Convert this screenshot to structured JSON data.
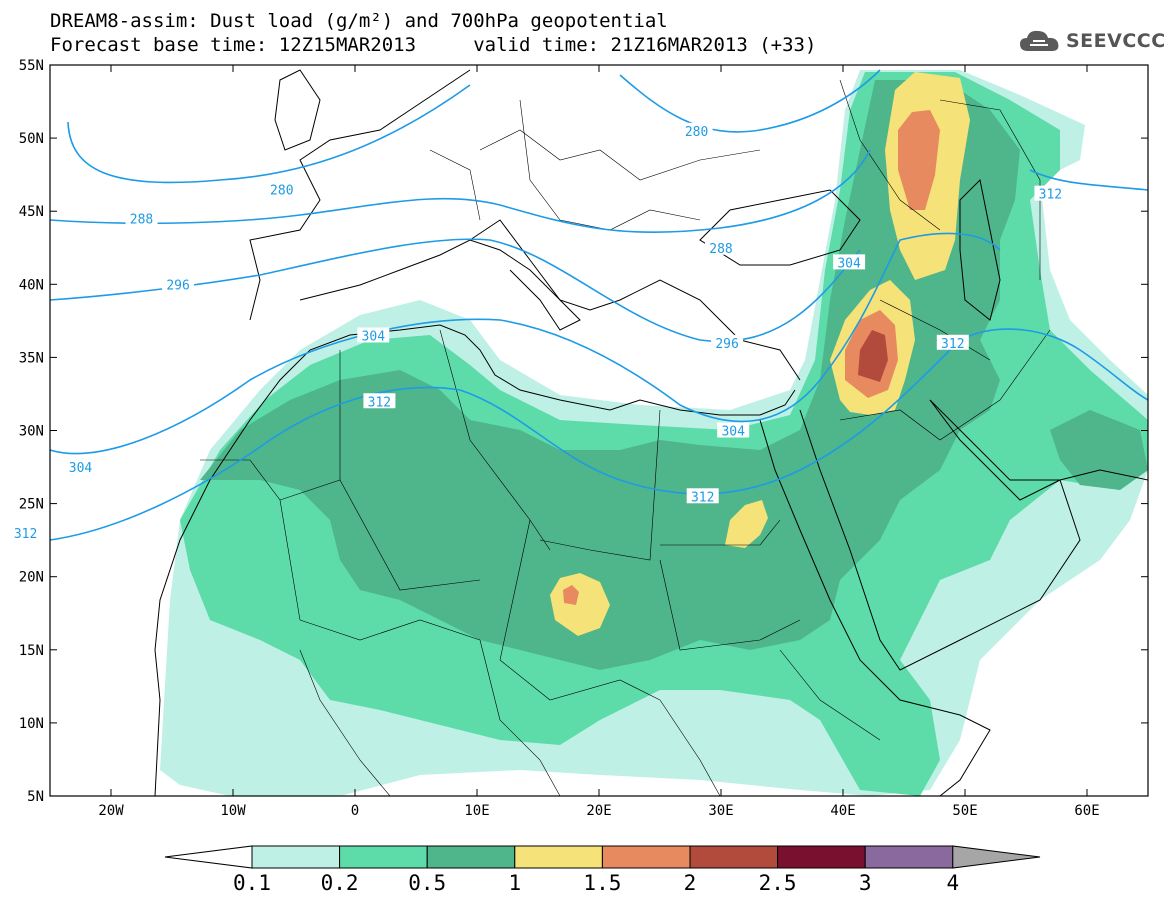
{
  "header": {
    "title_line1": "DREAM8-assim: Dust load (g/m²) and 700hPa geopotential",
    "title_line2": "Forecast base time: 12Z15MAR2013     valid time: 21Z16MAR2013 (+33)",
    "logo_text": "SEEVCCC"
  },
  "map": {
    "lat_labels": [
      "55N",
      "50N",
      "45N",
      "40N",
      "35N",
      "30N",
      "25N",
      "20N",
      "15N",
      "10N",
      "5N"
    ],
    "lon_labels": [
      "20W",
      "10W",
      "0",
      "10E",
      "20E",
      "30E",
      "40E",
      "50E",
      "60E"
    ],
    "contour_labels": [
      {
        "text": "280",
        "lon": -6,
        "lat": 46.5
      },
      {
        "text": "280",
        "lon": 28,
        "lat": 50.5
      },
      {
        "text": "288",
        "lon": -17.5,
        "lat": 44.5
      },
      {
        "text": "288",
        "lon": 30,
        "lat": 42.5
      },
      {
        "text": "296",
        "lon": -14.5,
        "lat": 40
      },
      {
        "text": "296",
        "lon": 30.5,
        "lat": 36
      },
      {
        "text": "304",
        "lon": 40.5,
        "lat": 41.5
      },
      {
        "text": "304",
        "lon": 1.5,
        "lat": 36.5
      },
      {
        "text": "304",
        "lon": -22.5,
        "lat": 27.5
      },
      {
        "text": "304",
        "lon": 31,
        "lat": 30
      },
      {
        "text": "312",
        "lon": 57,
        "lat": 46.2
      },
      {
        "text": "312",
        "lon": 49,
        "lat": 36
      },
      {
        "text": "312",
        "lon": 2,
        "lat": 32
      },
      {
        "text": "312",
        "lon": 28.5,
        "lat": 25.5
      },
      {
        "text": "312",
        "lon": -27,
        "lat": 23
      }
    ]
  },
  "colorbar": {
    "labels": [
      "0.1",
      "0.2",
      "0.5",
      "1",
      "1.5",
      "2",
      "2.5",
      "3",
      "4"
    ],
    "colors": {
      "c1": "#bff0e6",
      "c2": "#5ddcaa",
      "c3": "#4fb58a",
      "c4": "#f5e37a",
      "c5": "#e88a60",
      "c6": "#b24b3c",
      "c7": "#7a1030",
      "c8": "#8a6a9e",
      "c9": "#a6a6a6"
    }
  }
}
